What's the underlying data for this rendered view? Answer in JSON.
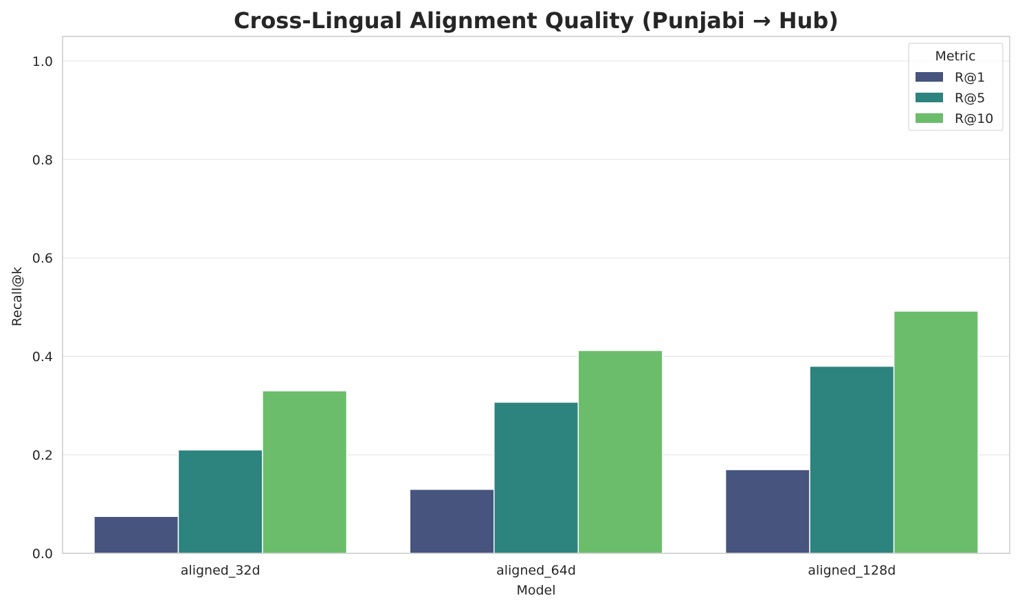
{
  "chart_data": {
    "type": "bar",
    "title": "Cross-Lingual Alignment Quality (Punjabi → Hub)",
    "xlabel": "Model",
    "ylabel": "Recall@k",
    "categories": [
      "aligned_32d",
      "aligned_64d",
      "aligned_128d"
    ],
    "series": [
      {
        "name": "R@1",
        "values": [
          0.075,
          0.13,
          0.17
        ],
        "color": "#46547e"
      },
      {
        "name": "R@5",
        "values": [
          0.21,
          0.307,
          0.38
        ],
        "color": "#2d837e"
      },
      {
        "name": "R@10",
        "values": [
          0.33,
          0.412,
          0.492
        ],
        "color": "#6bbd6b"
      }
    ],
    "ylim": [
      0,
      1.05
    ],
    "yticks": [
      "0.0",
      "0.2",
      "0.4",
      "0.6",
      "0.8",
      "1.0"
    ],
    "legend_title": "Metric",
    "legend_position": "top-right",
    "grid": true
  }
}
